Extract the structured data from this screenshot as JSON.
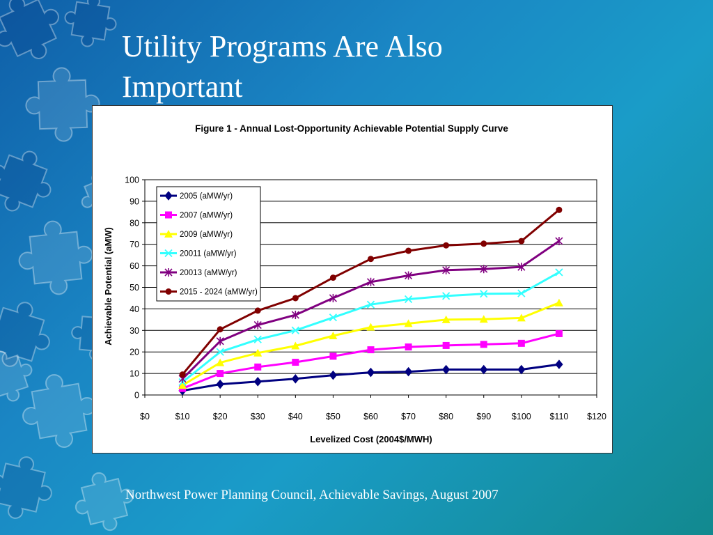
{
  "slide": {
    "title_line1": "Utility Programs Are Also",
    "title_line2": "Important",
    "caption": "Northwest Power Planning Council, Achievable Savings, August 2007"
  },
  "chart_data": {
    "type": "line",
    "title": "Figure 1 - Annual Lost-Opportunity Achievable Potential Supply Curve",
    "xlabel": "Levelized Cost (2004$/MWH)",
    "ylabel": "Achievable Potential (aMW)",
    "xlim": [
      0,
      120
    ],
    "ylim": [
      0,
      100
    ],
    "x_ticks": [
      "$0",
      "$10",
      "$20",
      "$30",
      "$40",
      "$50",
      "$60",
      "$70",
      "$80",
      "$90",
      "$100",
      "$110",
      "$120"
    ],
    "y_ticks": [
      "0",
      "10",
      "20",
      "30",
      "40",
      "50",
      "60",
      "70",
      "80",
      "90",
      "100"
    ],
    "grid": "horizontal",
    "legend_position": "top-left",
    "x": [
      10,
      20,
      30,
      40,
      50,
      60,
      70,
      80,
      90,
      100,
      110
    ],
    "series": [
      {
        "name": "2005 (aMW/yr)",
        "color": "#000080",
        "marker": "diamond",
        "values": [
          2,
          5,
          6.2,
          7.5,
          9.2,
          10.5,
          10.8,
          11.8,
          11.8,
          11.8,
          14.2
        ]
      },
      {
        "name": "2007 (aMW/yr)",
        "color": "#ff00ff",
        "marker": "square",
        "values": [
          3,
          10,
          13,
          15.2,
          18,
          21,
          22.3,
          23,
          23.5,
          24,
          28.5
        ]
      },
      {
        "name": "2009 (aMW/yr)",
        "color": "#ffff00",
        "marker": "triangle",
        "values": [
          4.5,
          15,
          19.5,
          22.8,
          27.5,
          31.5,
          33.2,
          35,
          35.2,
          35.8,
          42.8
        ]
      },
      {
        "name": "20011 (aMW/yr)",
        "color": "#33ffff",
        "marker": "x",
        "values": [
          6,
          20,
          25.8,
          30,
          36,
          42,
          44.5,
          46,
          47,
          47.2,
          57
        ]
      },
      {
        "name": "20013 (aMW/yr)",
        "color": "#800080",
        "marker": "star",
        "values": [
          7.5,
          25,
          32.5,
          37.2,
          45,
          52.5,
          55.5,
          58,
          58.5,
          59.5,
          71.5
        ]
      },
      {
        "name": "2015 - 2024 (aMW/yr)",
        "color": "#800000",
        "marker": "circle",
        "values": [
          9.5,
          30.5,
          39.2,
          45,
          54.5,
          63.2,
          67,
          69.5,
          70.3,
          71.5,
          86
        ]
      }
    ]
  }
}
